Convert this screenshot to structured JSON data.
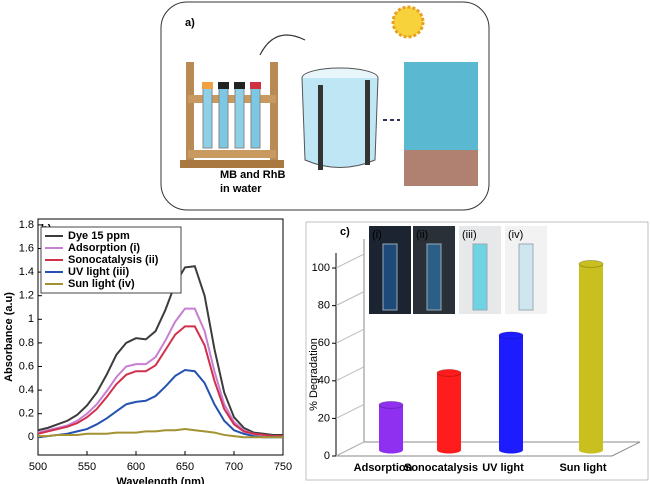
{
  "panel_a": {
    "label": "a)",
    "caption": [
      "MB and RhB",
      "in water"
    ]
  },
  "chart_data": [
    {
      "type": "line",
      "label": "b)",
      "xlabel": "Wavelength (nm)",
      "ylabel": "Absorbance (a.u)",
      "x": [
        500,
        510,
        520,
        530,
        540,
        550,
        560,
        570,
        580,
        590,
        600,
        610,
        620,
        630,
        640,
        650,
        660,
        670,
        680,
        690,
        700,
        710,
        720,
        730,
        740,
        750
      ],
      "xlim": [
        500,
        750
      ],
      "xticks": [
        500,
        550,
        600,
        650,
        700,
        750
      ],
      "ylim": [
        -0.15,
        1.85
      ],
      "yticks": [
        0,
        0.2,
        0.4,
        0.6,
        0.8,
        1,
        1.2,
        1.4,
        1.6,
        1.8
      ],
      "legend": "upper left",
      "series": [
        {
          "name": "Dye 15 ppm",
          "color": "#3c3c3c",
          "values": [
            0.06,
            0.08,
            0.11,
            0.14,
            0.19,
            0.27,
            0.38,
            0.53,
            0.7,
            0.8,
            0.84,
            0.83,
            0.9,
            1.08,
            1.3,
            1.44,
            1.45,
            1.2,
            0.75,
            0.38,
            0.17,
            0.08,
            0.04,
            0.03,
            0.02,
            0.02
          ]
        },
        {
          "name": "Adsorption (i)",
          "color": "#c77fd4",
          "values": [
            0.04,
            0.06,
            0.08,
            0.1,
            0.14,
            0.2,
            0.28,
            0.39,
            0.51,
            0.6,
            0.62,
            0.62,
            0.68,
            0.82,
            0.98,
            1.09,
            1.09,
            0.9,
            0.56,
            0.28,
            0.13,
            0.06,
            0.03,
            0.02,
            0.01,
            0.01
          ]
        },
        {
          "name": "Sonocatalysis (ii)",
          "color": "#d1304c",
          "values": [
            0.03,
            0.05,
            0.07,
            0.09,
            0.12,
            0.17,
            0.24,
            0.34,
            0.45,
            0.53,
            0.56,
            0.56,
            0.61,
            0.74,
            0.87,
            0.94,
            0.94,
            0.78,
            0.48,
            0.24,
            0.11,
            0.05,
            0.03,
            0.02,
            0.01,
            0.01
          ]
        },
        {
          "name": "UV light (iii)",
          "color": "#2452b0",
          "values": [
            0.0,
            0.01,
            0.02,
            0.03,
            0.05,
            0.07,
            0.11,
            0.16,
            0.22,
            0.28,
            0.3,
            0.31,
            0.35,
            0.43,
            0.52,
            0.57,
            0.56,
            0.46,
            0.28,
            0.14,
            0.06,
            0.03,
            0.01,
            0.0,
            0.0,
            0.0
          ]
        },
        {
          "name": "Sun light (iv)",
          "color": "#a39232",
          "values": [
            0.01,
            0.01,
            0.02,
            0.02,
            0.02,
            0.03,
            0.03,
            0.03,
            0.04,
            0.04,
            0.04,
            0.05,
            0.05,
            0.06,
            0.06,
            0.07,
            0.06,
            0.05,
            0.04,
            0.02,
            0.01,
            0.0,
            0.0,
            0.0,
            0.0,
            0.0
          ]
        }
      ]
    },
    {
      "type": "bar",
      "label": "c)",
      "ylabel": "% Degradation",
      "categories": [
        "Adsorption",
        "Sonocatalysis",
        "UV light",
        "Sun light"
      ],
      "values": [
        24,
        41,
        61,
        99
      ],
      "colors": [
        "#8f2ff0",
        "#ff1c1c",
        "#1c1cff",
        "#c9bf1e"
      ],
      "ylim": [
        0,
        108
      ],
      "yticks": [
        0,
        20,
        40,
        60,
        80,
        100
      ],
      "inset_labels": [
        "(i)",
        "(ii)",
        "(iii)",
        "(iv)"
      ]
    }
  ]
}
